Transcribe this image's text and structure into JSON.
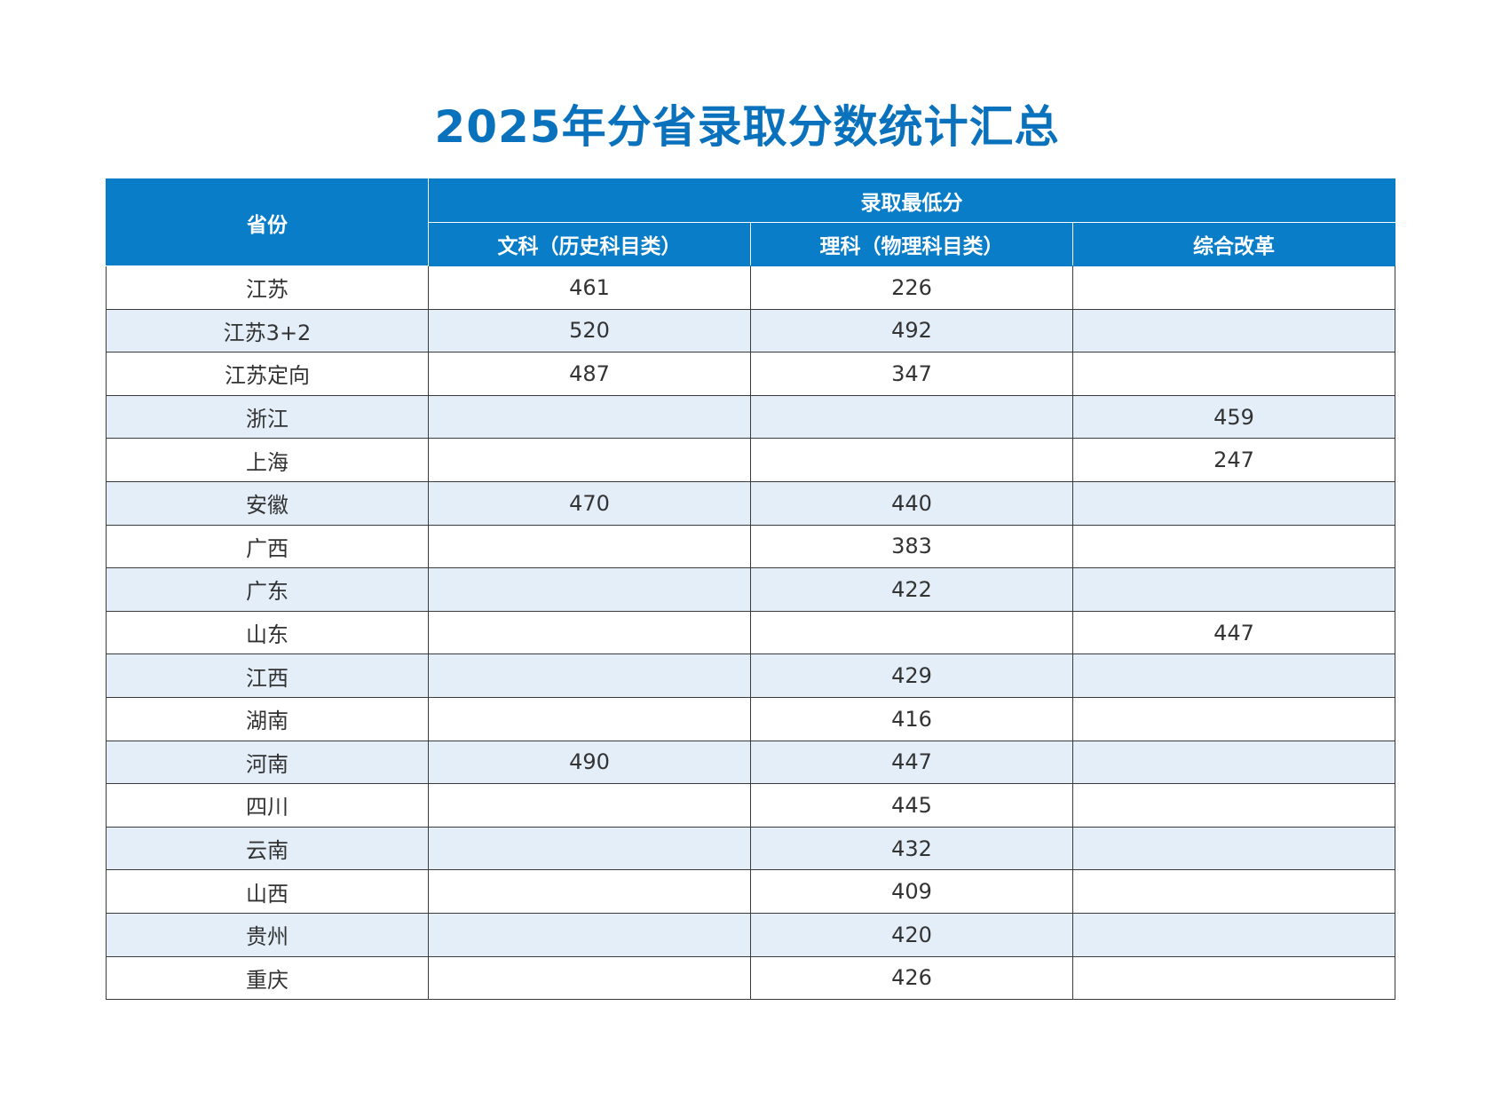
{
  "title": "2025年分省录取分数统计汇总",
  "header": {
    "province": "省份",
    "min_score": "录取最低分",
    "liberal": "文科（历史科目类）",
    "science": "理科（物理科目类）",
    "reform": "综合改革"
  },
  "rows": [
    {
      "province": "江苏",
      "liberal": "461",
      "science": "226",
      "reform": ""
    },
    {
      "province": "江苏3+2",
      "liberal": "520",
      "science": "492",
      "reform": ""
    },
    {
      "province": "江苏定向",
      "liberal": "487",
      "science": "347",
      "reform": ""
    },
    {
      "province": "浙江",
      "liberal": "",
      "science": "",
      "reform": "459"
    },
    {
      "province": "上海",
      "liberal": "",
      "science": "",
      "reform": "247"
    },
    {
      "province": "安徽",
      "liberal": "470",
      "science": "440",
      "reform": ""
    },
    {
      "province": "广西",
      "liberal": "",
      "science": "383",
      "reform": ""
    },
    {
      "province": "广东",
      "liberal": "",
      "science": "422",
      "reform": ""
    },
    {
      "province": "山东",
      "liberal": "",
      "science": "",
      "reform": "447"
    },
    {
      "province": "江西",
      "liberal": "",
      "science": "429",
      "reform": ""
    },
    {
      "province": "湖南",
      "liberal": "",
      "science": "416",
      "reform": ""
    },
    {
      "province": "河南",
      "liberal": "490",
      "science": "447",
      "reform": ""
    },
    {
      "province": "四川",
      "liberal": "",
      "science": "445",
      "reform": ""
    },
    {
      "province": "云南",
      "liberal": "",
      "science": "432",
      "reform": ""
    },
    {
      "province": "山西",
      "liberal": "",
      "science": "409",
      "reform": ""
    },
    {
      "province": "贵州",
      "liberal": "",
      "science": "420",
      "reform": ""
    },
    {
      "province": "重庆",
      "liberal": "",
      "science": "426",
      "reform": ""
    }
  ]
}
